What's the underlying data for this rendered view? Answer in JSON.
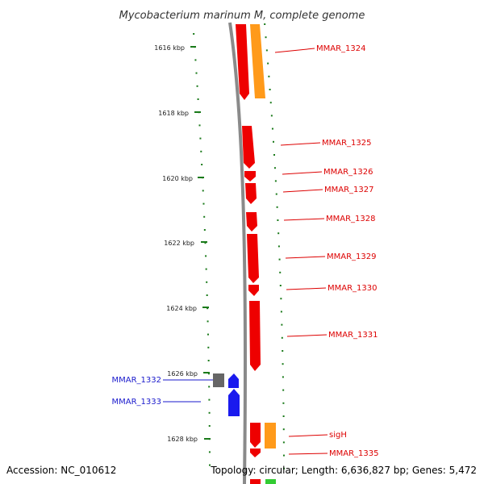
{
  "title": "Mycobacterium marinum M, complete genome",
  "accession": "Accession: NC_010612",
  "topology": "Topology: circular; Length: 6,636,827 bp; Genes: 5,472",
  "colors": {
    "backbone": "#8a8a8a",
    "tick": "#1a7a1a",
    "gene_red": "#ee0000",
    "gene_orange": "#ff9a1a",
    "gene_blue": "#1a1aee",
    "gene_gray": "#666666",
    "gene_green": "#33cc33",
    "label_red": "#dd0000",
    "label_blue": "#1a1acc"
  },
  "position_labels": [
    "1616 kbp",
    "1618 kbp",
    "1620 kbp",
    "1622 kbp",
    "1624 kbp",
    "1626 kbp",
    "1628 kbp"
  ],
  "genes": [
    {
      "label": "MMAR_1324",
      "color": "red",
      "strand": "+"
    },
    {
      "label": "",
      "color": "orange",
      "strand": "+"
    },
    {
      "label": "MMAR_1325",
      "color": "red",
      "strand": "+"
    },
    {
      "label": "MMAR_1326",
      "color": "red",
      "strand": "+"
    },
    {
      "label": "MMAR_1327",
      "color": "red",
      "strand": "+"
    },
    {
      "label": "MMAR_1328",
      "color": "red",
      "strand": "+"
    },
    {
      "label": "MMAR_1329",
      "color": "red",
      "strand": "+"
    },
    {
      "label": "MMAR_1330",
      "color": "red",
      "strand": "+"
    },
    {
      "label": "MMAR_1331",
      "color": "red",
      "strand": "+"
    },
    {
      "label": "MMAR_1332",
      "color": "blue",
      "strand": "-"
    },
    {
      "label": "",
      "color": "gray",
      "strand": "-"
    },
    {
      "label": "MMAR_1333",
      "color": "blue",
      "strand": "-"
    },
    {
      "label": "sigH",
      "color": "orange",
      "strand": "+"
    },
    {
      "label": "",
      "color": "red",
      "strand": "+"
    },
    {
      "label": "MMAR_1335",
      "color": "red",
      "strand": "+"
    },
    {
      "label": "",
      "color": "green",
      "strand": "+"
    }
  ]
}
